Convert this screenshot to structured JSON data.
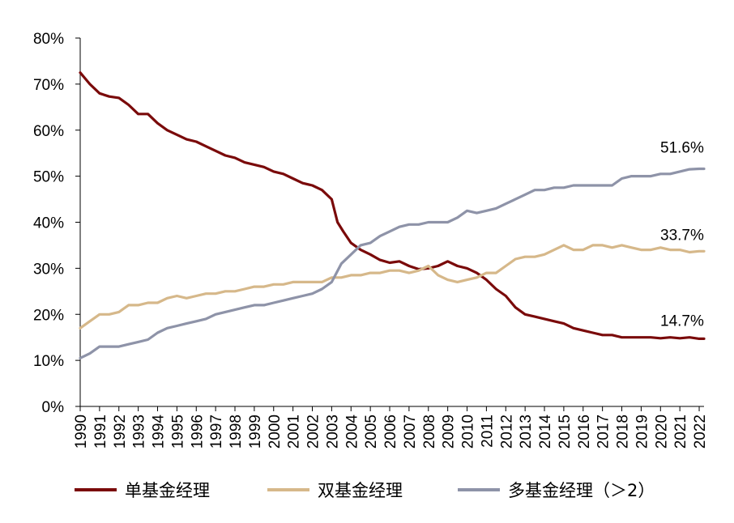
{
  "chart_data": {
    "type": "line",
    "ylim": [
      0,
      80
    ],
    "yticks": [
      "0%",
      "10%",
      "20%",
      "30%",
      "40%",
      "50%",
      "60%",
      "70%",
      "80%"
    ],
    "xlim": [
      1990,
      2022.25
    ],
    "xticks": [
      "1990",
      "1991",
      "1992",
      "1993",
      "1994",
      "1995",
      "1996",
      "1997",
      "1998",
      "1999",
      "2000",
      "2001",
      "2002",
      "2003",
      "2004",
      "2005",
      "2006",
      "2007",
      "2008",
      "2009",
      "2010",
      "2011",
      "2012",
      "2013",
      "2014",
      "2015",
      "2016",
      "2017",
      "2018",
      "2019",
      "2020",
      "2021",
      "2022"
    ],
    "series": [
      {
        "name": "单基金经理",
        "color": "#7a0a0a",
        "end_label": "14.7%",
        "points": [
          [
            1990,
            72.5
          ],
          [
            1990.5,
            70
          ],
          [
            1991,
            68
          ],
          [
            1991.5,
            67.3
          ],
          [
            1992,
            67
          ],
          [
            1992.5,
            65.5
          ],
          [
            1993,
            63.5
          ],
          [
            1993.5,
            63.5
          ],
          [
            1994,
            61.5
          ],
          [
            1994.5,
            60
          ],
          [
            1995,
            59
          ],
          [
            1995.5,
            58
          ],
          [
            1996,
            57.5
          ],
          [
            1996.5,
            56.5
          ],
          [
            1997,
            55.5
          ],
          [
            1997.5,
            54.5
          ],
          [
            1998,
            54
          ],
          [
            1998.5,
            53
          ],
          [
            1999,
            52.5
          ],
          [
            1999.5,
            52
          ],
          [
            2000,
            51
          ],
          [
            2000.5,
            50.5
          ],
          [
            2001,
            49.5
          ],
          [
            2001.5,
            48.5
          ],
          [
            2002,
            48
          ],
          [
            2002.5,
            47
          ],
          [
            2003,
            45
          ],
          [
            2003.3,
            40
          ],
          [
            2003.6,
            38
          ],
          [
            2004,
            35.5
          ],
          [
            2004.5,
            34
          ],
          [
            2005,
            33
          ],
          [
            2005.5,
            31.8
          ],
          [
            2006,
            31.2
          ],
          [
            2006.5,
            31.5
          ],
          [
            2007,
            30.5
          ],
          [
            2007.5,
            29.8
          ],
          [
            2008,
            30
          ],
          [
            2008.5,
            30.5
          ],
          [
            2009,
            31.5
          ],
          [
            2009.5,
            30.5
          ],
          [
            2010,
            30
          ],
          [
            2010.5,
            29
          ],
          [
            2011,
            27.5
          ],
          [
            2011.5,
            25.5
          ],
          [
            2012,
            24
          ],
          [
            2012.5,
            21.5
          ],
          [
            2013,
            20
          ],
          [
            2013.5,
            19.5
          ],
          [
            2014,
            19
          ],
          [
            2014.5,
            18.5
          ],
          [
            2015,
            18
          ],
          [
            2015.5,
            17
          ],
          [
            2016,
            16.5
          ],
          [
            2016.5,
            16
          ],
          [
            2017,
            15.5
          ],
          [
            2017.5,
            15.5
          ],
          [
            2018,
            15
          ],
          [
            2018.5,
            15
          ],
          [
            2019,
            15
          ],
          [
            2019.5,
            15
          ],
          [
            2020,
            14.8
          ],
          [
            2020.5,
            15
          ],
          [
            2021,
            14.8
          ],
          [
            2021.5,
            15
          ],
          [
            2022,
            14.7
          ],
          [
            2022.25,
            14.7
          ]
        ]
      },
      {
        "name": "双基金经理",
        "color": "#d6b88a",
        "end_label": "33.7%",
        "points": [
          [
            1990,
            17
          ],
          [
            1990.5,
            18.5
          ],
          [
            1991,
            20
          ],
          [
            1991.5,
            20
          ],
          [
            1992,
            20.5
          ],
          [
            1992.5,
            22
          ],
          [
            1993,
            22
          ],
          [
            1993.5,
            22.5
          ],
          [
            1994,
            22.5
          ],
          [
            1994.5,
            23.5
          ],
          [
            1995,
            24
          ],
          [
            1995.5,
            23.5
          ],
          [
            1996,
            24
          ],
          [
            1996.5,
            24.5
          ],
          [
            1997,
            24.5
          ],
          [
            1997.5,
            25
          ],
          [
            1998,
            25
          ],
          [
            1998.5,
            25.5
          ],
          [
            1999,
            26
          ],
          [
            1999.5,
            26
          ],
          [
            2000,
            26.5
          ],
          [
            2000.5,
            26.5
          ],
          [
            2001,
            27
          ],
          [
            2001.5,
            27
          ],
          [
            2002,
            27
          ],
          [
            2002.5,
            27
          ],
          [
            2003,
            28
          ],
          [
            2003.5,
            28
          ],
          [
            2004,
            28.5
          ],
          [
            2004.5,
            28.5
          ],
          [
            2005,
            29
          ],
          [
            2005.5,
            29
          ],
          [
            2006,
            29.5
          ],
          [
            2006.5,
            29.5
          ],
          [
            2007,
            29
          ],
          [
            2007.5,
            29.5
          ],
          [
            2008,
            30.5
          ],
          [
            2008.5,
            28.5
          ],
          [
            2009,
            27.5
          ],
          [
            2009.5,
            27
          ],
          [
            2010,
            27.5
          ],
          [
            2010.5,
            28
          ],
          [
            2011,
            29
          ],
          [
            2011.5,
            29
          ],
          [
            2012,
            30.5
          ],
          [
            2012.5,
            32
          ],
          [
            2013,
            32.5
          ],
          [
            2013.5,
            32.5
          ],
          [
            2014,
            33
          ],
          [
            2014.5,
            34
          ],
          [
            2015,
            35
          ],
          [
            2015.5,
            34
          ],
          [
            2016,
            34
          ],
          [
            2016.5,
            35
          ],
          [
            2017,
            35
          ],
          [
            2017.5,
            34.5
          ],
          [
            2018,
            35
          ],
          [
            2018.5,
            34.5
          ],
          [
            2019,
            34
          ],
          [
            2019.5,
            34
          ],
          [
            2020,
            34.5
          ],
          [
            2020.5,
            34
          ],
          [
            2021,
            34
          ],
          [
            2021.5,
            33.5
          ],
          [
            2022,
            33.7
          ],
          [
            2022.25,
            33.7
          ]
        ]
      },
      {
        "name": "多基金经理（＞2）",
        "color": "#8e93a8",
        "end_label": "51.6%",
        "points": [
          [
            1990,
            10.5
          ],
          [
            1990.5,
            11.5
          ],
          [
            1991,
            13
          ],
          [
            1991.5,
            13
          ],
          [
            1992,
            13
          ],
          [
            1992.5,
            13.5
          ],
          [
            1993,
            14
          ],
          [
            1993.5,
            14.5
          ],
          [
            1994,
            16
          ],
          [
            1994.5,
            17
          ],
          [
            1995,
            17.5
          ],
          [
            1995.5,
            18
          ],
          [
            1996,
            18.5
          ],
          [
            1996.5,
            19
          ],
          [
            1997,
            20
          ],
          [
            1997.5,
            20.5
          ],
          [
            1998,
            21
          ],
          [
            1998.5,
            21.5
          ],
          [
            1999,
            22
          ],
          [
            1999.5,
            22
          ],
          [
            2000,
            22.5
          ],
          [
            2000.5,
            23
          ],
          [
            2001,
            23.5
          ],
          [
            2001.5,
            24
          ],
          [
            2002,
            24.5
          ],
          [
            2002.5,
            25.5
          ],
          [
            2003,
            27
          ],
          [
            2003.5,
            31
          ],
          [
            2004,
            33
          ],
          [
            2004.5,
            35
          ],
          [
            2005,
            35.5
          ],
          [
            2005.5,
            37
          ],
          [
            2006,
            38
          ],
          [
            2006.5,
            39
          ],
          [
            2007,
            39.5
          ],
          [
            2007.5,
            39.5
          ],
          [
            2008,
            40
          ],
          [
            2008.5,
            40
          ],
          [
            2009,
            40
          ],
          [
            2009.5,
            41
          ],
          [
            2010,
            42.5
          ],
          [
            2010.5,
            42
          ],
          [
            2011,
            42.5
          ],
          [
            2011.5,
            43
          ],
          [
            2012,
            44
          ],
          [
            2012.5,
            45
          ],
          [
            2013,
            46
          ],
          [
            2013.5,
            47
          ],
          [
            2014,
            47
          ],
          [
            2014.5,
            47.5
          ],
          [
            2015,
            47.5
          ],
          [
            2015.5,
            48
          ],
          [
            2016,
            48
          ],
          [
            2016.5,
            48
          ],
          [
            2017,
            48
          ],
          [
            2017.5,
            48
          ],
          [
            2018,
            49.5
          ],
          [
            2018.5,
            50
          ],
          [
            2019,
            50
          ],
          [
            2019.5,
            50
          ],
          [
            2020,
            50.5
          ],
          [
            2020.5,
            50.5
          ],
          [
            2021,
            51
          ],
          [
            2021.5,
            51.5
          ],
          [
            2022,
            51.6
          ],
          [
            2022.25,
            51.6
          ]
        ]
      }
    ]
  }
}
